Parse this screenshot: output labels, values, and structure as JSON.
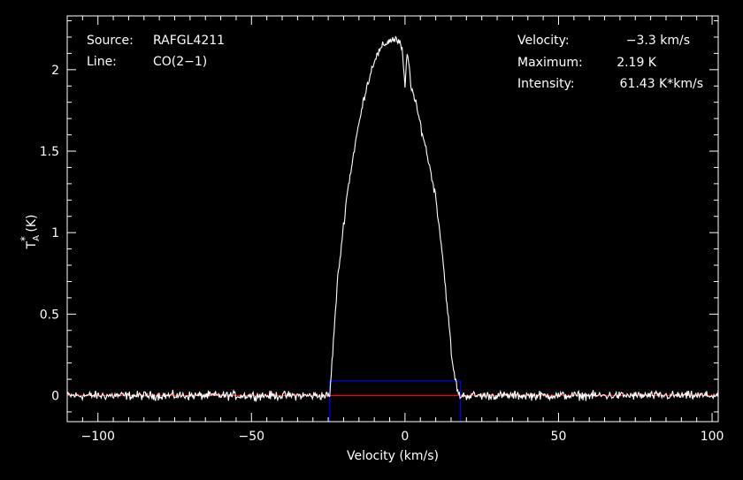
{
  "chart_data": {
    "type": "line",
    "xlabel": "Velocity (km/s)",
    "ylabel": "T*A (K)",
    "ylabel_main": "T",
    "ylabel_sup": "*",
    "ylabel_sub": "A",
    "ylabel_unit": " (K)",
    "xlim": [
      -110,
      102
    ],
    "ylim": [
      -0.16,
      2.33
    ],
    "xticks": [
      -100,
      -50,
      0,
      50,
      100
    ],
    "xtick_labels": [
      "−100",
      "−50",
      "0",
      "50",
      "100"
    ],
    "yticks": [
      0,
      0.5,
      1,
      1.5,
      2
    ],
    "ytick_labels": [
      "0",
      "0.5",
      "1",
      "1.5",
      "2"
    ],
    "grid": false,
    "info_left": [
      {
        "key": "Source:",
        "value": "RAFGL4211"
      },
      {
        "key": "Line:",
        "value": "CO(2−1)"
      }
    ],
    "info_right": [
      {
        "key": "Velocity:",
        "value": "−3.3 km/s"
      },
      {
        "key": "Maximum:",
        "value": "2.19 K"
      },
      {
        "key": "Intensity:",
        "value": "61.43 K*km/s"
      }
    ],
    "spectrum": {
      "color": "#ffffff",
      "x": [
        -110,
        -24.5,
        -22,
        -19,
        -16,
        -13,
        -10,
        -7,
        -5,
        -3,
        -1,
        0,
        0.5,
        1,
        2,
        4,
        7,
        10,
        12,
        14,
        15.5,
        17.5,
        102
      ],
      "y": [
        0,
        0,
        0.7,
        1.22,
        1.57,
        1.86,
        2.06,
        2.15,
        2.18,
        2.19,
        2.14,
        1.88,
        2.07,
        2.08,
        1.9,
        1.75,
        1.5,
        1.22,
        0.9,
        0.5,
        0.18,
        0,
        0
      ],
      "noise_rms": 0.012
    },
    "baseline": {
      "y": 0,
      "color": "#ff0000"
    },
    "window": {
      "x": [
        -24.5,
        18
      ],
      "y": [
        -0.16,
        0.09
      ],
      "color": "#0000ff"
    }
  }
}
